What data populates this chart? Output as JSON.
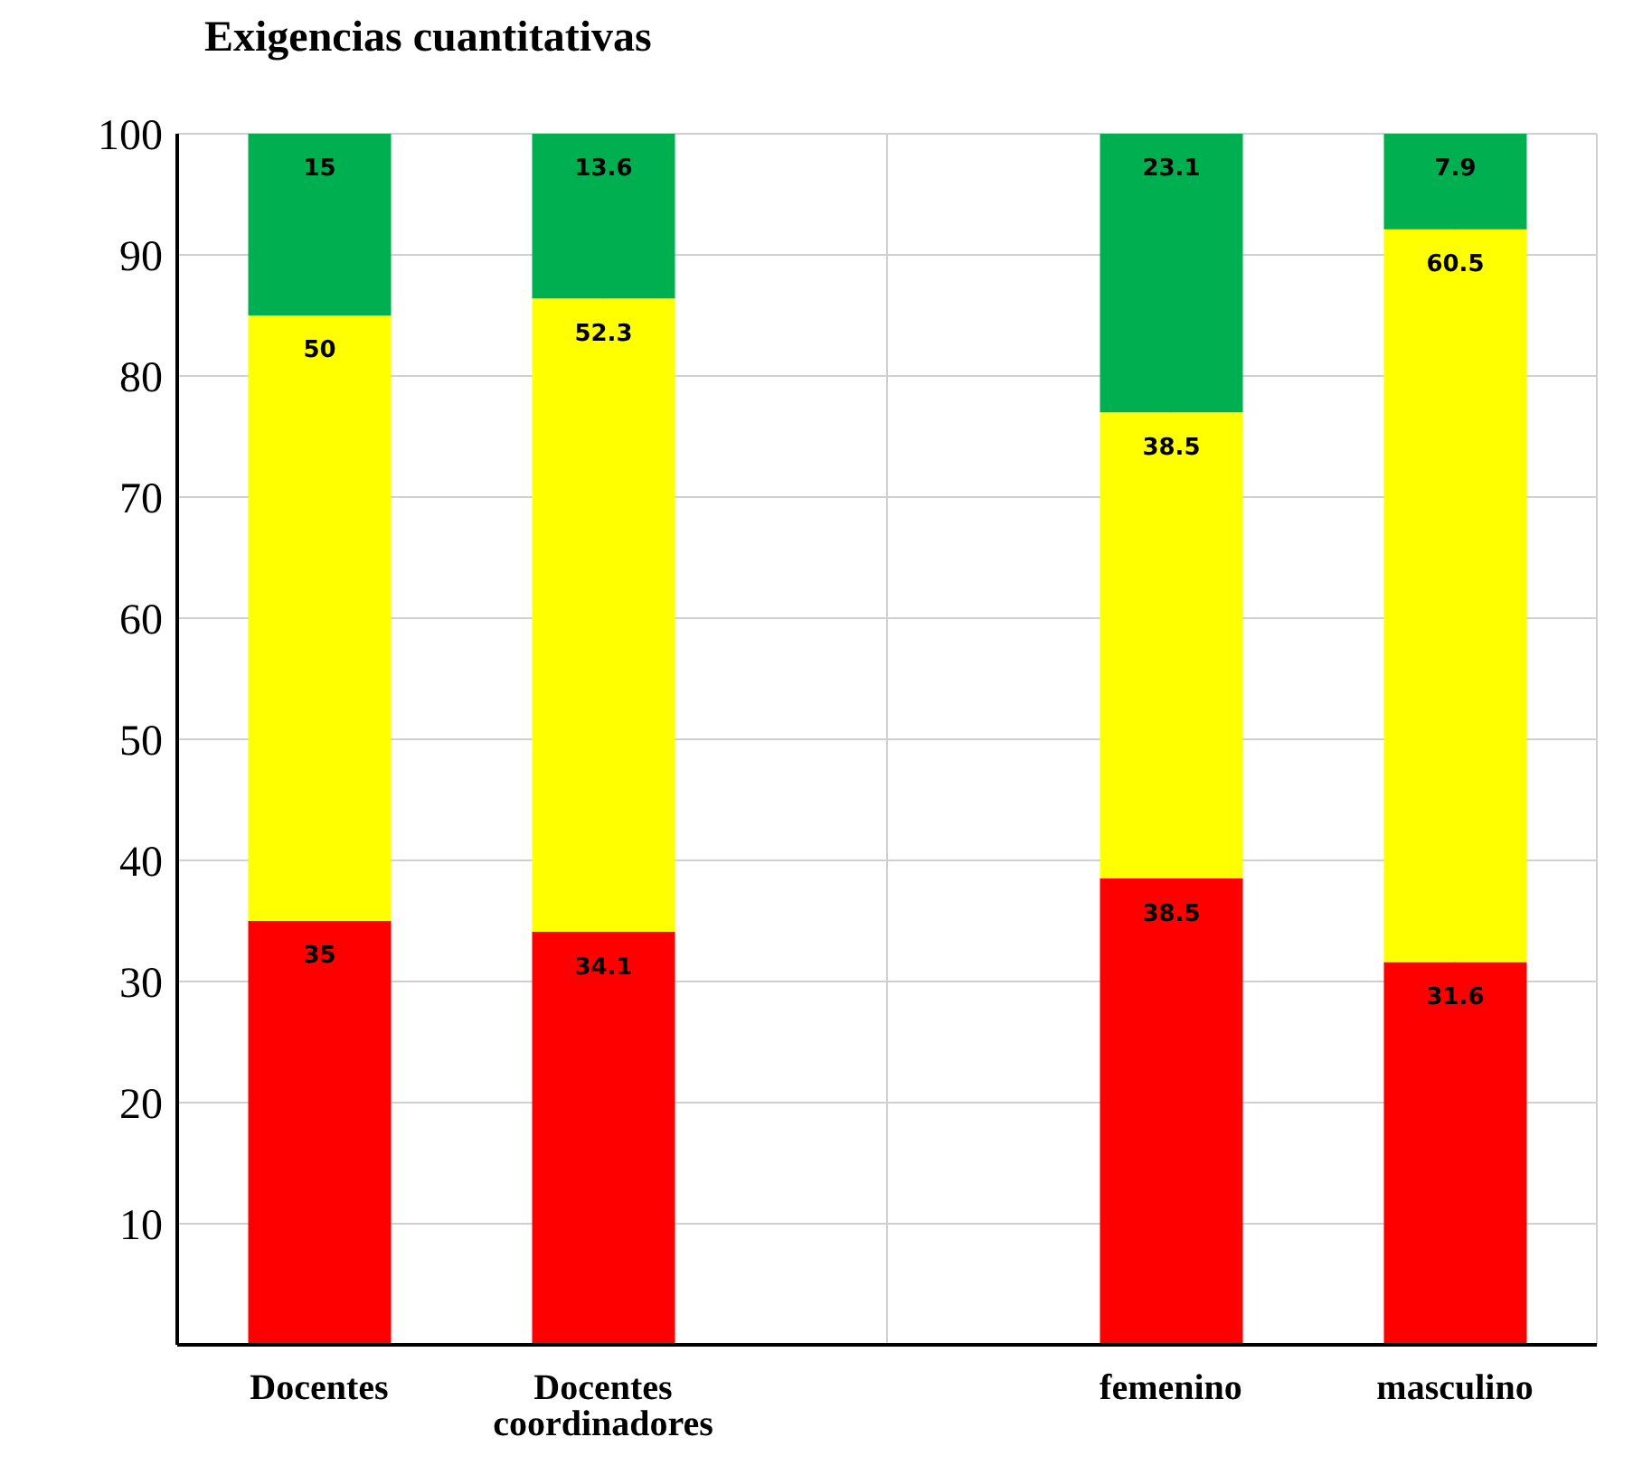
{
  "chart_data": {
    "type": "bar",
    "title": "Exigencias cuantitativas",
    "stacked": true,
    "data_labels": true,
    "grid": true,
    "categories": [
      "Docentes",
      "Docentes coordinadores",
      null,
      "femenino",
      "masculino"
    ],
    "series": [
      {
        "color": "#ff0000",
        "values": [
          35,
          34.1,
          null,
          38.5,
          31.6
        ]
      },
      {
        "color": "#ffff00",
        "values": [
          50,
          52.3,
          null,
          38.5,
          60.5
        ]
      },
      {
        "color": "#00b050",
        "values": [
          15,
          13.6,
          null,
          23.1,
          7.9
        ]
      }
    ],
    "ylim": [
      0,
      100
    ],
    "yticks": [
      10,
      20,
      30,
      40,
      50,
      60,
      70,
      80,
      90,
      100
    ]
  }
}
